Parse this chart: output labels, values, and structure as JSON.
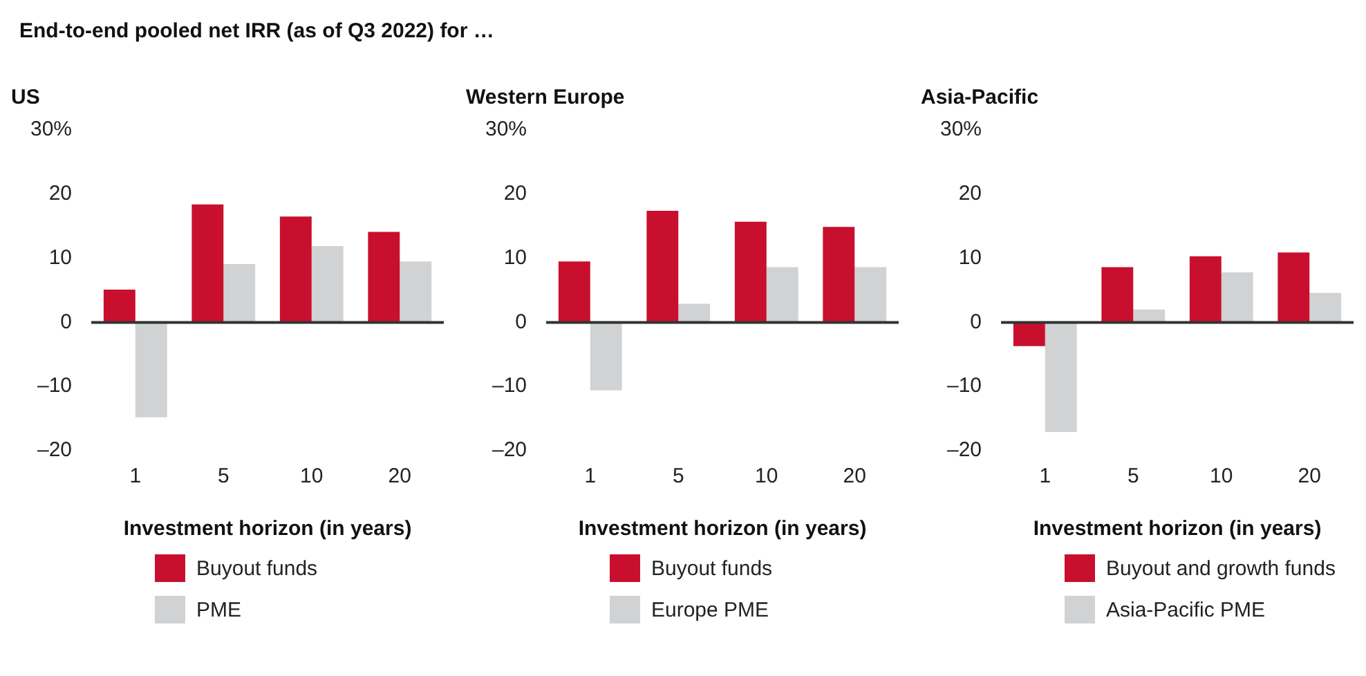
{
  "chart_data": [
    {
      "type": "bar",
      "title": "US",
      "annotations": [
        "End-to-end pooled net IRR (as of Q3 2022) for …"
      ],
      "xlabel": "Investment horizon (in years)",
      "categories": [
        "1",
        "5",
        "10",
        "20"
      ],
      "series": [
        {
          "name": "Buyout funds",
          "color": "#c8102e",
          "values": [
            5.1,
            18.4,
            16.5,
            14.1
          ]
        },
        {
          "name": "PME",
          "color": "#d0d2d4",
          "values": [
            -14.8,
            9.1,
            11.9,
            9.5
          ]
        }
      ],
      "ylim": [
        -20,
        30
      ],
      "yticks": [
        {
          "value": -20,
          "label": "–20"
        },
        {
          "value": -10,
          "label": "–10"
        },
        0,
        10,
        20,
        {
          "value": 30,
          "label": "30%"
        }
      ],
      "legend": "bottom"
    },
    {
      "type": "bar",
      "title": "Western Europe",
      "xlabel": "Investment horizon (in years)",
      "categories": [
        "1",
        "5",
        "10",
        "20"
      ],
      "series": [
        {
          "name": "Buyout funds",
          "color": "#c8102e",
          "values": [
            9.5,
            17.4,
            15.7,
            14.9
          ]
        },
        {
          "name": "Europe PME",
          "color": "#d0d2d4",
          "values": [
            -10.6,
            2.9,
            8.6,
            8.6
          ]
        }
      ],
      "ylim": [
        -20,
        30
      ],
      "yticks": [
        {
          "value": -20,
          "label": "–20"
        },
        {
          "value": -10,
          "label": "–10"
        },
        0,
        10,
        20,
        {
          "value": 30,
          "label": "30%"
        }
      ],
      "legend": "bottom"
    },
    {
      "type": "bar",
      "title": "Asia-Pacific",
      "xlabel": "Investment horizon (in years)",
      "categories": [
        "1",
        "5",
        "10",
        "20"
      ],
      "series": [
        {
          "name": "Buyout and growth funds",
          "color": "#c8102e",
          "values": [
            -3.7,
            8.6,
            10.3,
            10.9
          ]
        },
        {
          "name": "Asia-Pacific PME",
          "color": "#d0d2d4",
          "values": [
            -17.1,
            2.0,
            7.8,
            4.6
          ]
        }
      ],
      "ylim": [
        -20,
        30
      ],
      "yticks": [
        {
          "value": -20,
          "label": "–20"
        },
        {
          "value": -10,
          "label": "–10"
        },
        0,
        10,
        20,
        {
          "value": 30,
          "label": "30%"
        }
      ],
      "legend": "bottom"
    }
  ]
}
